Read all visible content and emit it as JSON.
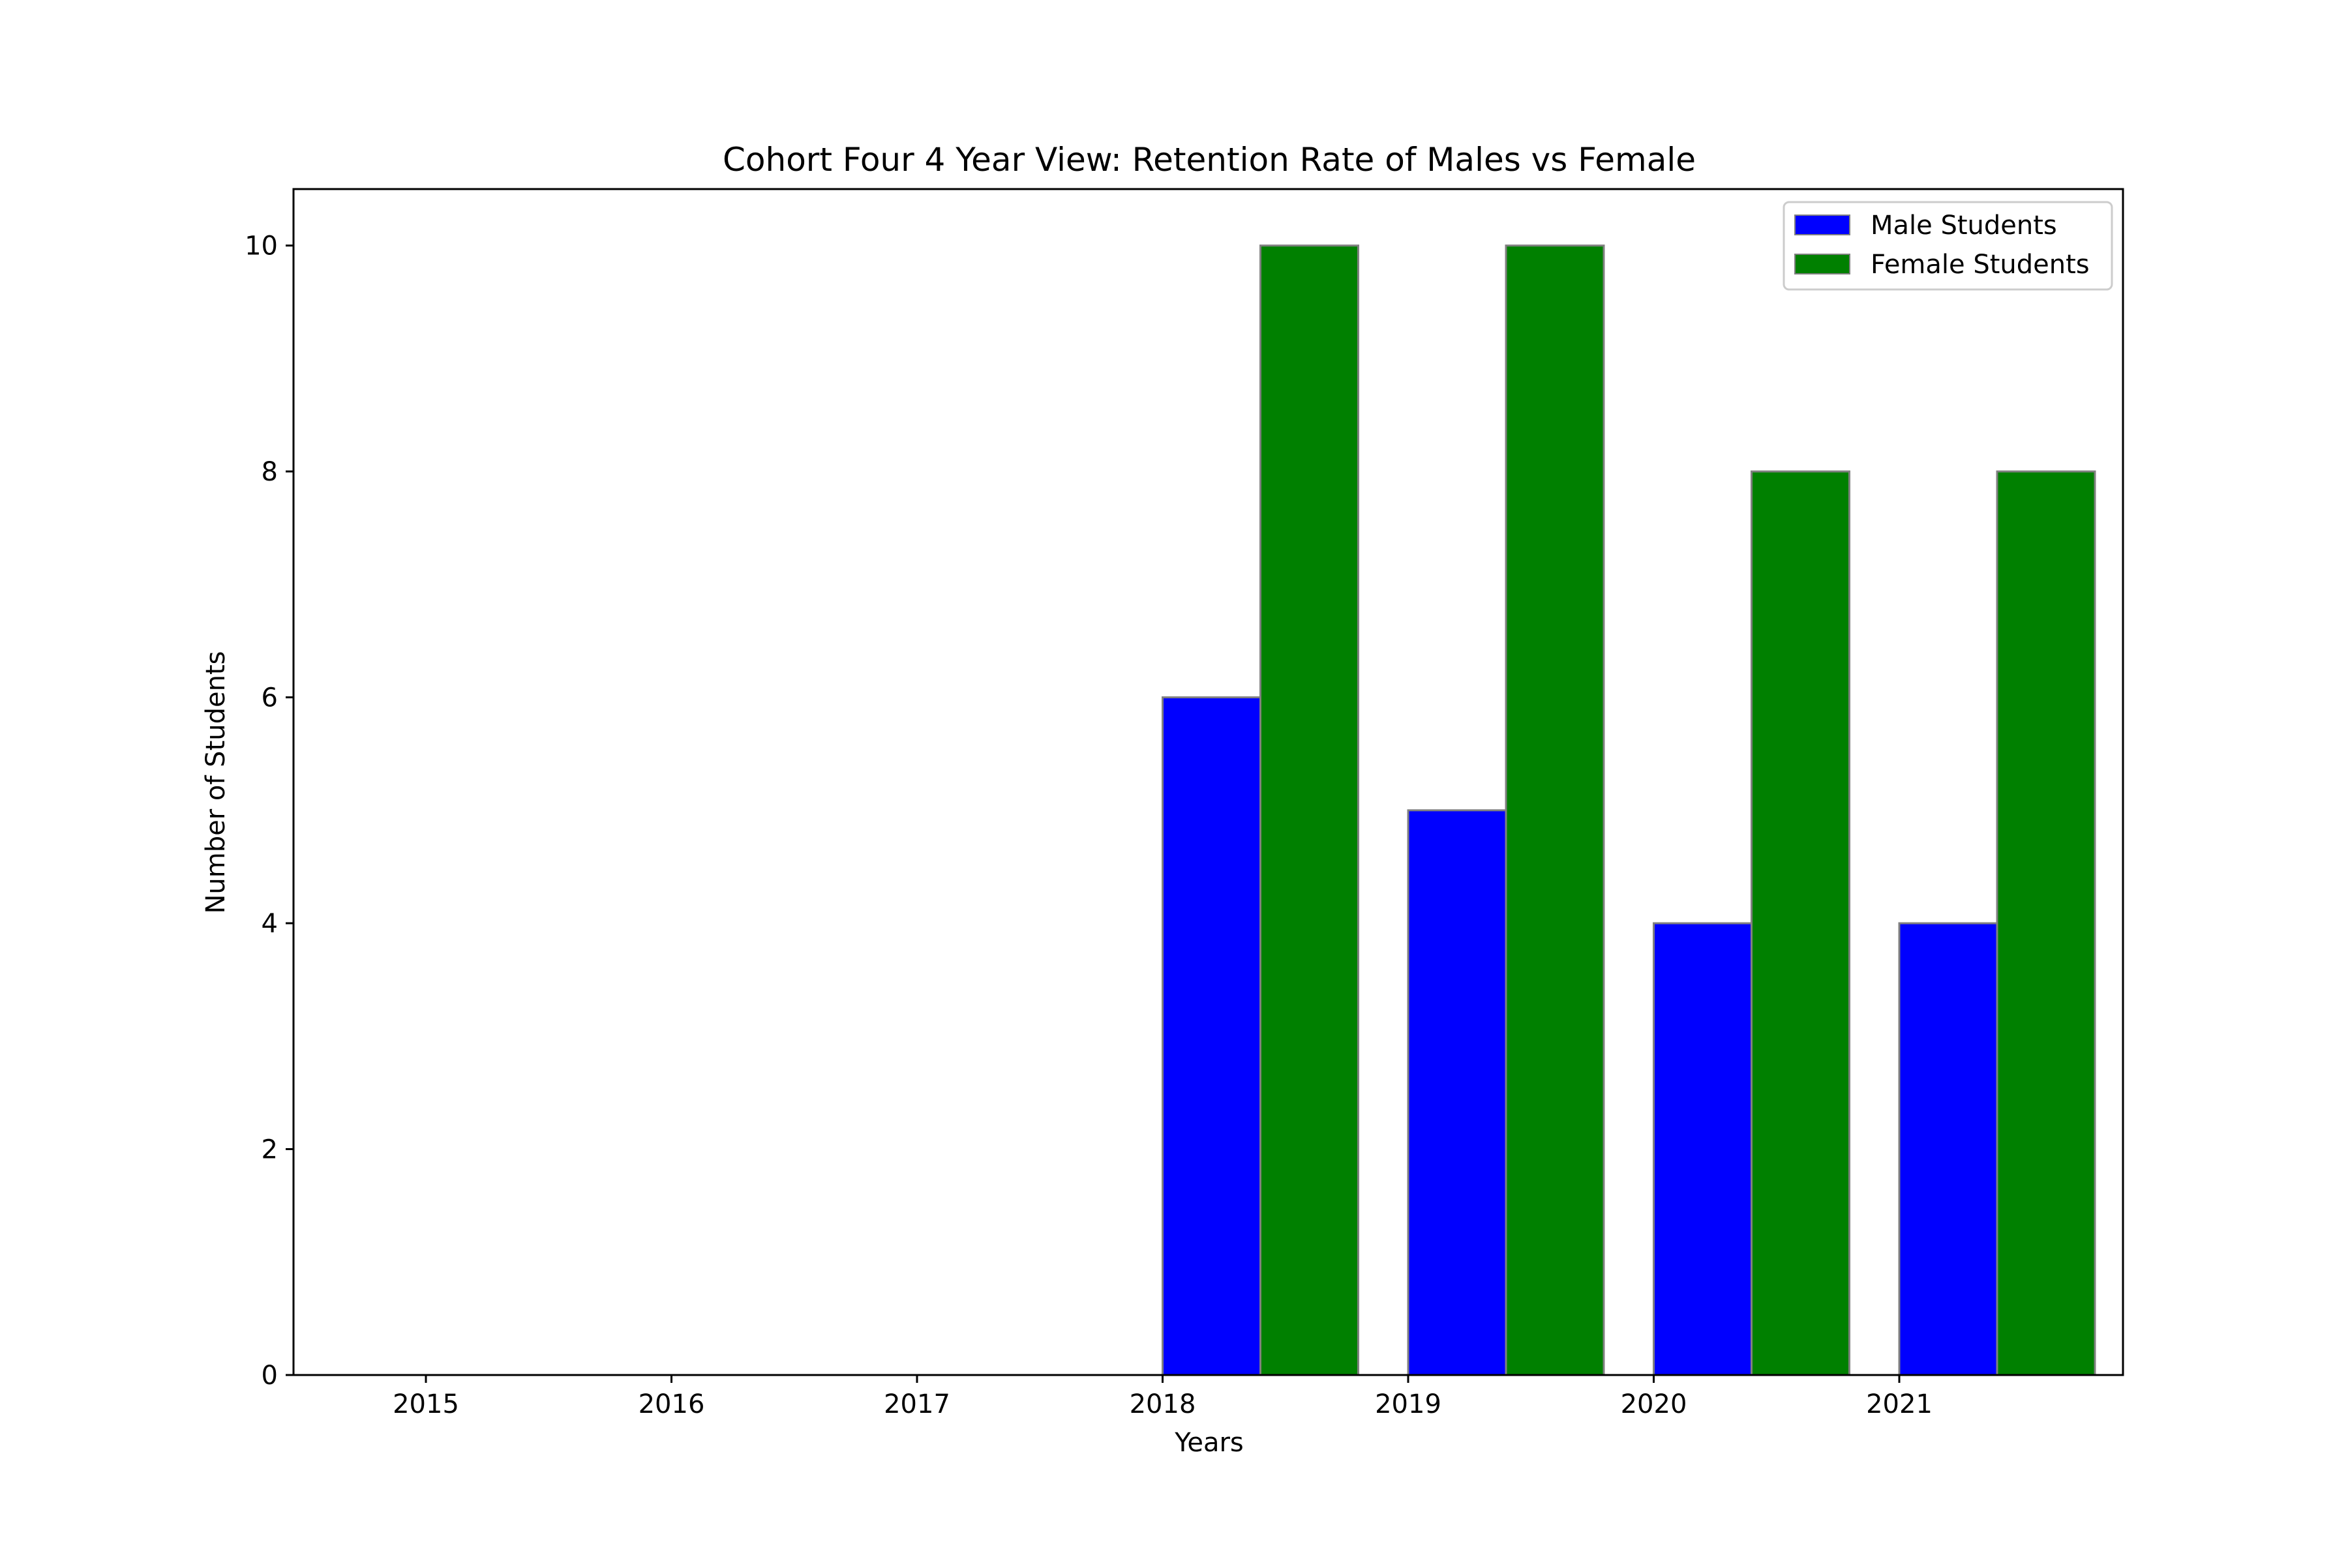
{
  "chart_data": {
    "type": "bar",
    "title": "Cohort Four 4 Year View: Retention Rate of Males vs Female",
    "xlabel": "Years",
    "ylabel": "Number of Students",
    "categories": [
      "2015",
      "2016",
      "2017",
      "2018",
      "2019",
      "2020",
      "2021"
    ],
    "series": [
      {
        "name": "Male Students",
        "color": "#0000ff",
        "values": [
          0,
          0,
          0,
          6,
          5,
          4,
          4
        ]
      },
      {
        "name": "Female Students",
        "color": "#008000",
        "values": [
          0,
          0,
          0,
          10,
          10,
          8,
          8
        ]
      }
    ],
    "ylim": [
      0,
      10.5
    ],
    "yticks": [
      0,
      2,
      4,
      6,
      8,
      10
    ],
    "bar_edge_color": "#808080",
    "grid": false,
    "legend_position": "top-right"
  }
}
